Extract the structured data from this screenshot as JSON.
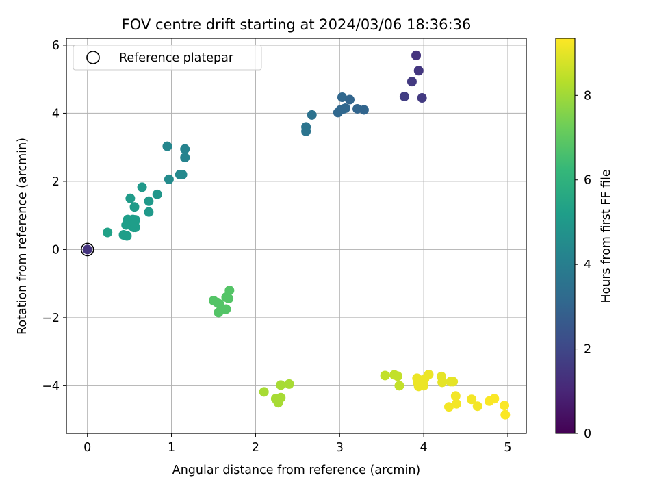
{
  "chart_data": {
    "type": "scatter",
    "title": "FOV centre drift starting at 2024/03/06 18:36:36",
    "xlabel": "Angular distance from reference (arcmin)",
    "ylabel": "Rotation from reference (arcmin)",
    "xlim": [
      -0.25,
      5.22
    ],
    "ylim": [
      -5.4,
      6.2
    ],
    "xticks": [
      0,
      1,
      2,
      3,
      4,
      5
    ],
    "yticks": [
      -4,
      -2,
      0,
      2,
      4,
      6
    ],
    "grid": true,
    "legend": {
      "position": "top-left",
      "entries": [
        "Reference platepar"
      ]
    },
    "reference_point": {
      "x": 0,
      "y": 0,
      "label": "Reference platepar"
    },
    "colorbar": {
      "label": "Hours from first FF file",
      "range": [
        0,
        9.35
      ],
      "ticks": [
        0,
        2,
        4,
        6,
        8
      ],
      "colormap": [
        "#440154",
        "#482878",
        "#3e4a89",
        "#31688e",
        "#26828e",
        "#1f9e89",
        "#35b779",
        "#6ece58",
        "#b5de2b",
        "#fde725"
      ]
    },
    "points": [
      {
        "x": 0.0,
        "y": 0.0,
        "c": 1.4
      },
      {
        "x": 0.24,
        "y": 0.5,
        "c": 5.3
      },
      {
        "x": 0.43,
        "y": 0.43,
        "c": 5.2
      },
      {
        "x": 0.47,
        "y": 0.4,
        "c": 5.2
      },
      {
        "x": 0.46,
        "y": 0.72,
        "c": 5.2
      },
      {
        "x": 0.48,
        "y": 0.88,
        "c": 5.2
      },
      {
        "x": 0.52,
        "y": 0.7,
        "c": 5.2
      },
      {
        "x": 0.55,
        "y": 0.65,
        "c": 5.2
      },
      {
        "x": 0.57,
        "y": 0.65,
        "c": 5.2
      },
      {
        "x": 0.54,
        "y": 0.88,
        "c": 5.2
      },
      {
        "x": 0.57,
        "y": 0.87,
        "c": 5.2
      },
      {
        "x": 0.56,
        "y": 0.77,
        "c": 5.2
      },
      {
        "x": 0.51,
        "y": 1.5,
        "c": 5.1
      },
      {
        "x": 0.56,
        "y": 1.25,
        "c": 5.1
      },
      {
        "x": 0.65,
        "y": 1.83,
        "c": 5.0
      },
      {
        "x": 0.73,
        "y": 1.1,
        "c": 5.0
      },
      {
        "x": 0.73,
        "y": 1.42,
        "c": 5.0
      },
      {
        "x": 0.83,
        "y": 1.62,
        "c": 4.9
      },
      {
        "x": 0.95,
        "y": 3.03,
        "c": 4.3
      },
      {
        "x": 0.97,
        "y": 2.06,
        "c": 4.5
      },
      {
        "x": 1.1,
        "y": 2.2,
        "c": 4.4
      },
      {
        "x": 1.13,
        "y": 2.2,
        "c": 4.4
      },
      {
        "x": 1.16,
        "y": 2.95,
        "c": 4.2
      },
      {
        "x": 1.16,
        "y": 2.7,
        "c": 4.2
      },
      {
        "x": 1.5,
        "y": -1.5,
        "c": 6.8
      },
      {
        "x": 1.54,
        "y": -1.55,
        "c": 6.8
      },
      {
        "x": 1.57,
        "y": -1.6,
        "c": 6.8
      },
      {
        "x": 1.56,
        "y": -1.85,
        "c": 6.8
      },
      {
        "x": 1.6,
        "y": -1.75,
        "c": 6.8
      },
      {
        "x": 1.65,
        "y": -1.75,
        "c": 6.8
      },
      {
        "x": 1.65,
        "y": -1.4,
        "c": 6.8
      },
      {
        "x": 1.68,
        "y": -1.44,
        "c": 6.8
      },
      {
        "x": 1.69,
        "y": -1.2,
        "c": 6.8
      },
      {
        "x": 2.1,
        "y": -4.18,
        "c": 8.1
      },
      {
        "x": 2.24,
        "y": -4.38,
        "c": 8.1
      },
      {
        "x": 2.27,
        "y": -4.5,
        "c": 8.1
      },
      {
        "x": 2.3,
        "y": -4.35,
        "c": 8.1
      },
      {
        "x": 2.3,
        "y": -3.98,
        "c": 8.1
      },
      {
        "x": 2.4,
        "y": -3.95,
        "c": 8.1
      },
      {
        "x": 2.6,
        "y": 3.47,
        "c": 3.6
      },
      {
        "x": 2.6,
        "y": 3.6,
        "c": 3.6
      },
      {
        "x": 2.67,
        "y": 3.95,
        "c": 3.5
      },
      {
        "x": 2.98,
        "y": 4.02,
        "c": 3.1
      },
      {
        "x": 3.01,
        "y": 4.1,
        "c": 3.1
      },
      {
        "x": 3.03,
        "y": 4.47,
        "c": 3.1
      },
      {
        "x": 3.05,
        "y": 4.13,
        "c": 3.1
      },
      {
        "x": 3.07,
        "y": 4.15,
        "c": 3.1
      },
      {
        "x": 3.12,
        "y": 4.4,
        "c": 3.0
      },
      {
        "x": 3.21,
        "y": 4.13,
        "c": 3.0
      },
      {
        "x": 3.29,
        "y": 4.1,
        "c": 3.0
      },
      {
        "x": 3.54,
        "y": -3.7,
        "c": 8.5
      },
      {
        "x": 3.65,
        "y": -3.68,
        "c": 8.5
      },
      {
        "x": 3.69,
        "y": -3.72,
        "c": 8.5
      },
      {
        "x": 3.71,
        "y": -4.0,
        "c": 8.5
      },
      {
        "x": 3.77,
        "y": 4.49,
        "c": 1.7
      },
      {
        "x": 3.86,
        "y": 4.93,
        "c": 1.6
      },
      {
        "x": 3.91,
        "y": 5.7,
        "c": 1.4
      },
      {
        "x": 3.94,
        "y": 5.25,
        "c": 1.5
      },
      {
        "x": 3.98,
        "y": 4.45,
        "c": 1.6
      },
      {
        "x": 3.92,
        "y": -3.78,
        "c": 9.1
      },
      {
        "x": 3.93,
        "y": -3.92,
        "c": 9.1
      },
      {
        "x": 3.94,
        "y": -4.02,
        "c": 9.1
      },
      {
        "x": 3.96,
        "y": -3.85,
        "c": 9.1
      },
      {
        "x": 3.98,
        "y": -3.96,
        "c": 9.1
      },
      {
        "x": 4.0,
        "y": -4.0,
        "c": 9.1
      },
      {
        "x": 4.01,
        "y": -3.8,
        "c": 9.1
      },
      {
        "x": 4.06,
        "y": -3.67,
        "c": 9.1
      },
      {
        "x": 4.21,
        "y": -3.73,
        "c": 9.0
      },
      {
        "x": 4.22,
        "y": -3.9,
        "c": 9.0
      },
      {
        "x": 4.32,
        "y": -3.88,
        "c": 9.0
      },
      {
        "x": 4.35,
        "y": -3.88,
        "c": 9.0
      },
      {
        "x": 4.3,
        "y": -4.62,
        "c": 9.2
      },
      {
        "x": 4.38,
        "y": -4.3,
        "c": 9.2
      },
      {
        "x": 4.39,
        "y": -4.53,
        "c": 9.2
      },
      {
        "x": 4.57,
        "y": -4.4,
        "c": 9.2
      },
      {
        "x": 4.64,
        "y": -4.6,
        "c": 9.2
      },
      {
        "x": 4.78,
        "y": -4.45,
        "c": 9.3
      },
      {
        "x": 4.84,
        "y": -4.38,
        "c": 9.3
      },
      {
        "x": 4.96,
        "y": -4.58,
        "c": 9.3
      },
      {
        "x": 4.97,
        "y": -4.85,
        "c": 9.3
      }
    ]
  }
}
